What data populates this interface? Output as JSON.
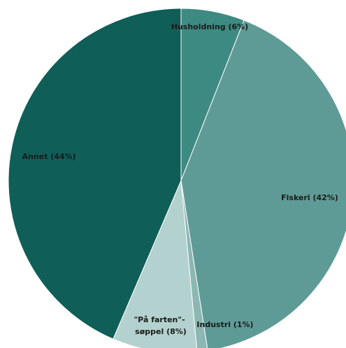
{
  "chart_data": {
    "type": "pie",
    "title": "",
    "start_angle_deg": 0,
    "direction": "clockwise",
    "slices": [
      {
        "name": "Husholdning",
        "label": "Husholdning (6%)",
        "value": 6,
        "color": "#3d8a82"
      },
      {
        "name": "Fiskeri",
        "label": "Fiskeri (42%)",
        "value": 42,
        "color": "#5f9b96"
      },
      {
        "name": "Industri",
        "label": "Industri (1%)",
        "value": 1,
        "color": "#8cb7b3"
      },
      {
        "name": "\"På farten\"-søppel",
        "label_lines": [
          "\"På farten\"-",
          "søppel (8%)"
        ],
        "value": 8,
        "color": "#b3d2cf"
      },
      {
        "name": "Annet",
        "label": "Annet (44%)",
        "value": 44,
        "color": "#0f5e58"
      }
    ],
    "legend": "none"
  }
}
